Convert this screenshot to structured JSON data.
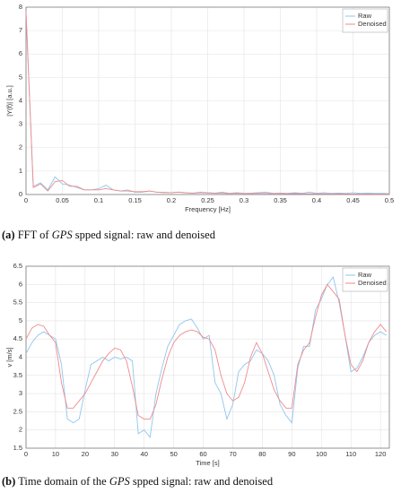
{
  "chart_data": [
    {
      "type": "line",
      "xlabel": "Frequency [Hz]",
      "ylabel": "|Y(f)| [a.u.]",
      "caption": [
        "(a)",
        "FFT of",
        "GPS",
        "spped signal: raw and denoised"
      ],
      "xlim": [
        0,
        0.5
      ],
      "xticks": [
        0,
        0.05,
        0.1,
        0.15,
        0.2,
        0.25,
        0.3,
        0.35,
        0.4,
        0.45,
        0.5
      ],
      "ylim": [
        0,
        8
      ],
      "yticks": [
        0,
        1,
        2,
        3,
        4,
        5,
        6,
        7,
        8
      ],
      "grid": true,
      "legend": "top-right",
      "x": [
        0,
        0.01,
        0.02,
        0.03,
        0.04,
        0.05,
        0.06,
        0.07,
        0.08,
        0.09,
        0.1,
        0.11,
        0.12,
        0.13,
        0.14,
        0.15,
        0.16,
        0.17,
        0.18,
        0.19,
        0.2,
        0.21,
        0.22,
        0.23,
        0.24,
        0.25,
        0.26,
        0.27,
        0.28,
        0.29,
        0.3,
        0.31,
        0.32,
        0.33,
        0.34,
        0.35,
        0.36,
        0.37,
        0.38,
        0.39,
        0.4,
        0.41,
        0.42,
        0.43,
        0.44,
        0.45,
        0.46,
        0.47,
        0.48,
        0.49,
        0.5
      ],
      "series": [
        {
          "name": "Raw",
          "color": "#8fc6ee",
          "values": [
            7.8,
            0.35,
            0.5,
            0.2,
            0.75,
            0.45,
            0.4,
            0.3,
            0.2,
            0.2,
            0.25,
            0.4,
            0.2,
            0.15,
            0.2,
            0.1,
            0.1,
            0.15,
            0.1,
            0.1,
            0.08,
            0.1,
            0.08,
            0.06,
            0.1,
            0.08,
            0.06,
            0.1,
            0.05,
            0.08,
            0.05,
            0.06,
            0.08,
            0.1,
            0.05,
            0.06,
            0.05,
            0.08,
            0.05,
            0.1,
            0.05,
            0.08,
            0.05,
            0.06,
            0.05,
            0.08,
            0.05,
            0.06,
            0.05,
            0.05,
            0.04
          ]
        },
        {
          "name": "Denoised",
          "color": "#f08a8a",
          "values": [
            7.8,
            0.3,
            0.45,
            0.15,
            0.55,
            0.6,
            0.35,
            0.35,
            0.2,
            0.2,
            0.2,
            0.25,
            0.2,
            0.15,
            0.15,
            0.12,
            0.12,
            0.15,
            0.1,
            0.08,
            0.08,
            0.1,
            0.07,
            0.05,
            0.08,
            0.06,
            0.05,
            0.05,
            0.04,
            0.05,
            0.04,
            0.04,
            0.05,
            0.04,
            0.04,
            0.04,
            0.03,
            0.04,
            0.03,
            0.03,
            0.03,
            0.03,
            0.02,
            0.03,
            0.02,
            0.02,
            0.02,
            0.02,
            0.02,
            0.02,
            0.02
          ]
        }
      ]
    },
    {
      "type": "line",
      "xlabel": "Time [s]",
      "ylabel": "v [m/s]",
      "caption": [
        "(b)",
        "Time domain of the",
        "GPS",
        "spped signal: raw and denoised"
      ],
      "xlim": [
        0,
        123
      ],
      "xticks": [
        0,
        10,
        20,
        30,
        40,
        50,
        60,
        70,
        80,
        90,
        100,
        110,
        120
      ],
      "ylim": [
        1.5,
        6.5
      ],
      "yticks": [
        1.5,
        2,
        2.5,
        3,
        3.5,
        4,
        4.5,
        5,
        5.5,
        6,
        6.5
      ],
      "grid": true,
      "legend": "top-right",
      "x": [
        0,
        2,
        4,
        6,
        8,
        10,
        12,
        14,
        16,
        18,
        20,
        22,
        24,
        26,
        28,
        30,
        32,
        34,
        36,
        38,
        40,
        42,
        44,
        46,
        48,
        50,
        52,
        54,
        56,
        58,
        60,
        62,
        64,
        66,
        68,
        70,
        72,
        74,
        76,
        78,
        80,
        82,
        84,
        86,
        88,
        90,
        92,
        94,
        96,
        98,
        100,
        102,
        104,
        106,
        108,
        110,
        112,
        114,
        116,
        118,
        120,
        122
      ],
      "series": [
        {
          "name": "Raw",
          "color": "#8fc6ee",
          "values": [
            4.1,
            4.4,
            4.6,
            4.7,
            4.6,
            4.5,
            3.8,
            2.3,
            2.2,
            2.3,
            3.1,
            3.8,
            3.9,
            4.0,
            3.9,
            4.0,
            3.95,
            4.0,
            3.9,
            1.9,
            2.0,
            1.8,
            3.0,
            3.7,
            4.3,
            4.6,
            4.9,
            5.0,
            5.05,
            4.8,
            4.5,
            4.6,
            3.3,
            3.0,
            2.3,
            2.7,
            3.6,
            3.8,
            3.9,
            4.2,
            4.1,
            3.9,
            3.5,
            2.7,
            2.4,
            2.2,
            3.7,
            4.3,
            4.3,
            5.3,
            5.6,
            6.0,
            6.2,
            5.5,
            4.6,
            3.6,
            3.7,
            4.0,
            4.4,
            4.6,
            4.7,
            4.6
          ]
        },
        {
          "name": "Denoised",
          "color": "#f08a8a",
          "values": [
            4.5,
            4.8,
            4.9,
            4.85,
            4.6,
            4.4,
            3.3,
            2.6,
            2.6,
            2.8,
            3.0,
            3.3,
            3.6,
            3.9,
            4.1,
            4.25,
            4.2,
            3.9,
            3.2,
            2.4,
            2.3,
            2.3,
            2.7,
            3.4,
            4.0,
            4.4,
            4.6,
            4.7,
            4.75,
            4.7,
            4.55,
            4.5,
            4.2,
            3.5,
            3.0,
            2.8,
            2.9,
            3.3,
            4.0,
            4.4,
            4.1,
            3.6,
            3.1,
            2.8,
            2.6,
            2.6,
            3.8,
            4.2,
            4.4,
            5.1,
            5.7,
            6.0,
            5.8,
            5.6,
            4.6,
            3.8,
            3.6,
            3.9,
            4.4,
            4.7,
            4.9,
            4.7
          ]
        }
      ]
    }
  ]
}
